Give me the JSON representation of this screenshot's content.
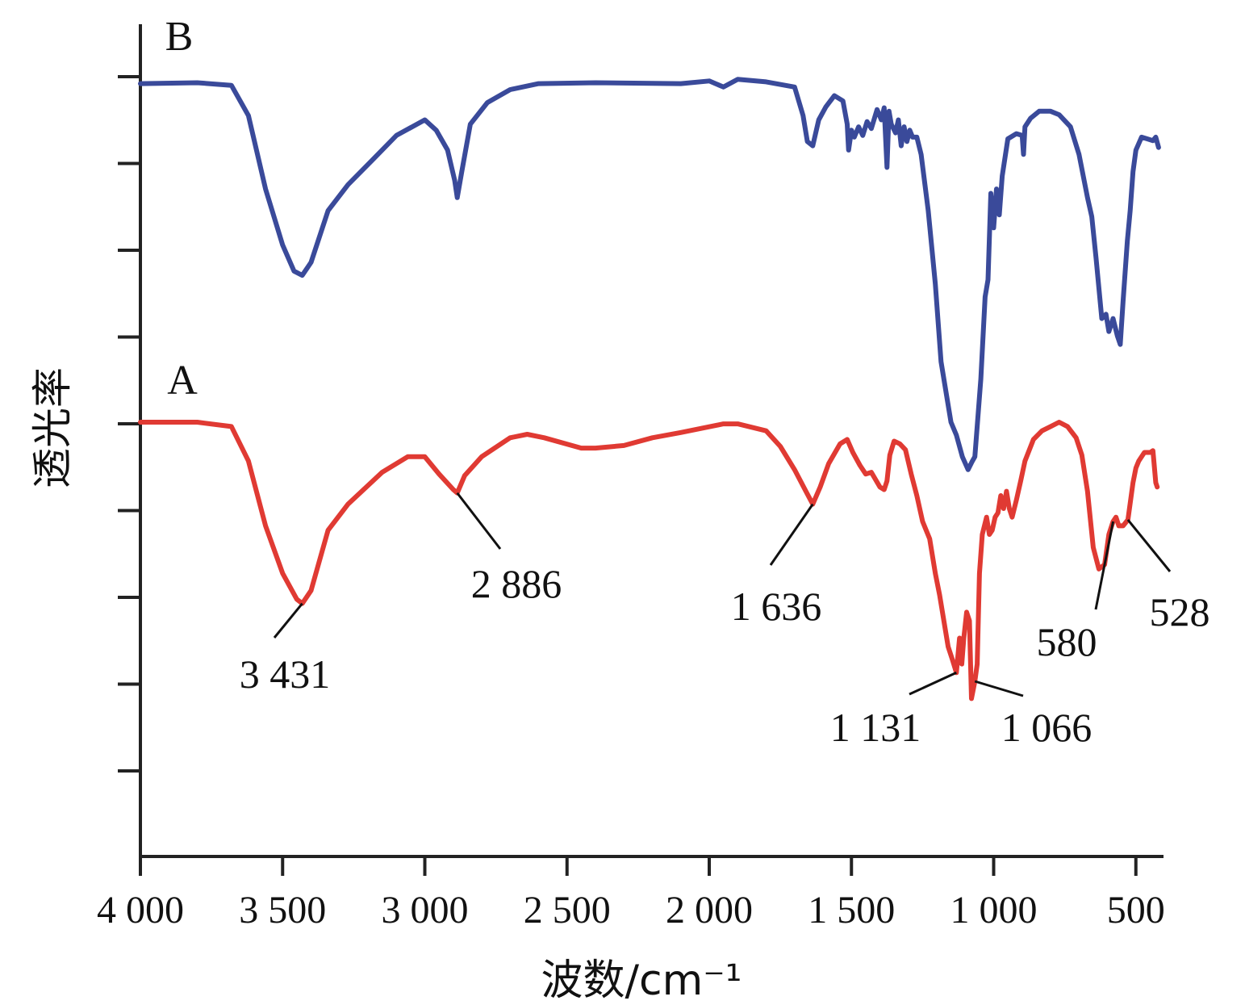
{
  "chart_data": {
    "type": "line",
    "title": "",
    "xlabel": "波数/cm⁻¹",
    "ylabel": "透光率",
    "xlim": [
      4000,
      400
    ],
    "x_reversed": true,
    "x_ticks": [
      {
        "value": 4000,
        "label": "4 000"
      },
      {
        "value": 3500,
        "label": "3 500"
      },
      {
        "value": 3000,
        "label": "3 000"
      },
      {
        "value": 2500,
        "label": "2 500"
      },
      {
        "value": 2000,
        "label": "2 000"
      },
      {
        "value": 1500,
        "label": "1 500"
      },
      {
        "value": 1000,
        "label": "1 000"
      },
      {
        "value": 500,
        "label": "500"
      }
    ],
    "y_tick_count": 9,
    "y_tick_labels_shown": false,
    "series": [
      {
        "name": "B",
        "color": "#3a4a9a",
        "points": [
          [
            4000,
            0.08
          ],
          [
            3800,
            0.07
          ],
          [
            3680,
            0.1
          ],
          [
            3620,
            0.45
          ],
          [
            3560,
            1.3
          ],
          [
            3500,
            1.95
          ],
          [
            3460,
            2.25
          ],
          [
            3431,
            2.3
          ],
          [
            3400,
            2.15
          ],
          [
            3340,
            1.55
          ],
          [
            3270,
            1.25
          ],
          [
            3180,
            0.95
          ],
          [
            3100,
            0.68
          ],
          [
            3000,
            0.5
          ],
          [
            2960,
            0.62
          ],
          [
            2920,
            0.85
          ],
          [
            2895,
            1.2
          ],
          [
            2886,
            1.4
          ],
          [
            2870,
            1.1
          ],
          [
            2840,
            0.55
          ],
          [
            2780,
            0.3
          ],
          [
            2700,
            0.15
          ],
          [
            2600,
            0.08
          ],
          [
            2400,
            0.07
          ],
          [
            2100,
            0.08
          ],
          [
            2000,
            0.05
          ],
          [
            1950,
            0.12
          ],
          [
            1900,
            0.03
          ],
          [
            1800,
            0.06
          ],
          [
            1700,
            0.12
          ],
          [
            1670,
            0.45
          ],
          [
            1655,
            0.75
          ],
          [
            1636,
            0.8
          ],
          [
            1615,
            0.5
          ],
          [
            1590,
            0.35
          ],
          [
            1560,
            0.22
          ],
          [
            1530,
            0.28
          ],
          [
            1515,
            0.55
          ],
          [
            1510,
            0.85
          ],
          [
            1500,
            0.62
          ],
          [
            1490,
            0.7
          ],
          [
            1475,
            0.58
          ],
          [
            1460,
            0.68
          ],
          [
            1445,
            0.52
          ],
          [
            1430,
            0.6
          ],
          [
            1410,
            0.38
          ],
          [
            1395,
            0.5
          ],
          [
            1385,
            0.36
          ],
          [
            1375,
            1.05
          ],
          [
            1368,
            0.4
          ],
          [
            1360,
            0.55
          ],
          [
            1345,
            0.65
          ],
          [
            1335,
            0.5
          ],
          [
            1325,
            0.8
          ],
          [
            1315,
            0.58
          ],
          [
            1305,
            0.75
          ],
          [
            1295,
            0.62
          ],
          [
            1285,
            0.7
          ],
          [
            1270,
            0.7
          ],
          [
            1255,
            0.9
          ],
          [
            1230,
            1.55
          ],
          [
            1205,
            2.4
          ],
          [
            1185,
            3.3
          ],
          [
            1165,
            3.7
          ],
          [
            1150,
            4.0
          ],
          [
            1131,
            4.15
          ],
          [
            1110,
            4.4
          ],
          [
            1090,
            4.55
          ],
          [
            1075,
            4.45
          ],
          [
            1066,
            4.4
          ],
          [
            1045,
            3.5
          ],
          [
            1030,
            2.55
          ],
          [
            1020,
            2.35
          ],
          [
            1010,
            1.35
          ],
          [
            1000,
            1.75
          ],
          [
            990,
            1.3
          ],
          [
            980,
            1.6
          ],
          [
            970,
            1.15
          ],
          [
            950,
            0.72
          ],
          [
            920,
            0.66
          ],
          [
            900,
            0.68
          ],
          [
            895,
            0.9
          ],
          [
            890,
            0.58
          ],
          [
            870,
            0.48
          ],
          [
            840,
            0.4
          ],
          [
            800,
            0.4
          ],
          [
            770,
            0.44
          ],
          [
            730,
            0.58
          ],
          [
            700,
            0.9
          ],
          [
            670,
            1.4
          ],
          [
            655,
            1.62
          ],
          [
            640,
            2.1
          ],
          [
            620,
            2.8
          ],
          [
            605,
            2.75
          ],
          [
            595,
            2.95
          ],
          [
            580,
            2.8
          ],
          [
            565,
            3.0
          ],
          [
            555,
            3.1
          ],
          [
            545,
            2.6
          ],
          [
            530,
            1.9
          ],
          [
            520,
            1.55
          ],
          [
            510,
            1.1
          ],
          [
            500,
            0.85
          ],
          [
            480,
            0.7
          ],
          [
            460,
            0.72
          ],
          [
            440,
            0.74
          ],
          [
            430,
            0.7
          ],
          [
            420,
            0.82
          ]
        ]
      },
      {
        "name": "A",
        "color": "#e03a33",
        "points": [
          [
            4000,
            0.0
          ],
          [
            3800,
            0.0
          ],
          [
            3680,
            0.05
          ],
          [
            3620,
            0.45
          ],
          [
            3560,
            1.2
          ],
          [
            3500,
            1.75
          ],
          [
            3450,
            2.05
          ],
          [
            3431,
            2.1
          ],
          [
            3400,
            1.95
          ],
          [
            3340,
            1.25
          ],
          [
            3270,
            0.95
          ],
          [
            3150,
            0.58
          ],
          [
            3060,
            0.4
          ],
          [
            3000,
            0.4
          ],
          [
            2950,
            0.6
          ],
          [
            2900,
            0.78
          ],
          [
            2886,
            0.82
          ],
          [
            2860,
            0.62
          ],
          [
            2800,
            0.4
          ],
          [
            2700,
            0.18
          ],
          [
            2640,
            0.14
          ],
          [
            2580,
            0.18
          ],
          [
            2450,
            0.3
          ],
          [
            2400,
            0.3
          ],
          [
            2300,
            0.27
          ],
          [
            2200,
            0.18
          ],
          [
            2100,
            0.12
          ],
          [
            1950,
            0.02
          ],
          [
            1900,
            0.02
          ],
          [
            1800,
            0.1
          ],
          [
            1750,
            0.28
          ],
          [
            1700,
            0.55
          ],
          [
            1660,
            0.8
          ],
          [
            1636,
            0.95
          ],
          [
            1610,
            0.75
          ],
          [
            1580,
            0.48
          ],
          [
            1540,
            0.25
          ],
          [
            1515,
            0.2
          ],
          [
            1495,
            0.35
          ],
          [
            1470,
            0.5
          ],
          [
            1450,
            0.6
          ],
          [
            1430,
            0.58
          ],
          [
            1400,
            0.75
          ],
          [
            1385,
            0.78
          ],
          [
            1375,
            0.68
          ],
          [
            1365,
            0.38
          ],
          [
            1350,
            0.22
          ],
          [
            1330,
            0.25
          ],
          [
            1310,
            0.32
          ],
          [
            1290,
            0.6
          ],
          [
            1270,
            0.85
          ],
          [
            1250,
            1.15
          ],
          [
            1225,
            1.35
          ],
          [
            1205,
            1.75
          ],
          [
            1190,
            2.0
          ],
          [
            1175,
            2.3
          ],
          [
            1160,
            2.6
          ],
          [
            1145,
            2.75
          ],
          [
            1131,
            2.9
          ],
          [
            1120,
            2.5
          ],
          [
            1112,
            2.8
          ],
          [
            1105,
            2.5
          ],
          [
            1095,
            2.2
          ],
          [
            1085,
            2.3
          ],
          [
            1078,
            3.2
          ],
          [
            1066,
            3.0
          ],
          [
            1058,
            2.8
          ],
          [
            1050,
            1.75
          ],
          [
            1040,
            1.3
          ],
          [
            1025,
            1.1
          ],
          [
            1015,
            1.3
          ],
          [
            1005,
            1.25
          ],
          [
            995,
            1.1
          ],
          [
            985,
            1.05
          ],
          [
            975,
            0.85
          ],
          [
            965,
            1.0
          ],
          [
            955,
            0.8
          ],
          [
            945,
            1.0
          ],
          [
            935,
            1.1
          ],
          [
            920,
            0.9
          ],
          [
            905,
            0.68
          ],
          [
            890,
            0.45
          ],
          [
            860,
            0.2
          ],
          [
            830,
            0.1
          ],
          [
            800,
            0.05
          ],
          [
            770,
            0.0
          ],
          [
            740,
            0.05
          ],
          [
            710,
            0.18
          ],
          [
            690,
            0.38
          ],
          [
            670,
            0.8
          ],
          [
            650,
            1.45
          ],
          [
            630,
            1.7
          ],
          [
            610,
            1.65
          ],
          [
            595,
            1.3
          ],
          [
            580,
            1.15
          ],
          [
            570,
            1.1
          ],
          [
            560,
            1.2
          ],
          [
            545,
            1.2
          ],
          [
            528,
            1.13
          ],
          [
            510,
            0.7
          ],
          [
            500,
            0.53
          ],
          [
            490,
            0.45
          ],
          [
            470,
            0.35
          ],
          [
            450,
            0.35
          ],
          [
            440,
            0.33
          ],
          [
            430,
            0.7
          ],
          [
            425,
            0.75
          ]
        ]
      }
    ],
    "annotations": [
      {
        "series": "A",
        "x": 3431,
        "label": "3 431"
      },
      {
        "series": "A",
        "x": 2886,
        "label": "2 886"
      },
      {
        "series": "A",
        "x": 1636,
        "label": "1 636"
      },
      {
        "series": "A",
        "x": 1131,
        "label": "1 131"
      },
      {
        "series": "A",
        "x": 1066,
        "label": "1 066"
      },
      {
        "series": "A",
        "x": 580,
        "label": "580"
      },
      {
        "series": "A",
        "x": 528,
        "label": "528"
      }
    ],
    "series_labels": [
      "B",
      "A"
    ],
    "grid": false,
    "legend": "none"
  }
}
